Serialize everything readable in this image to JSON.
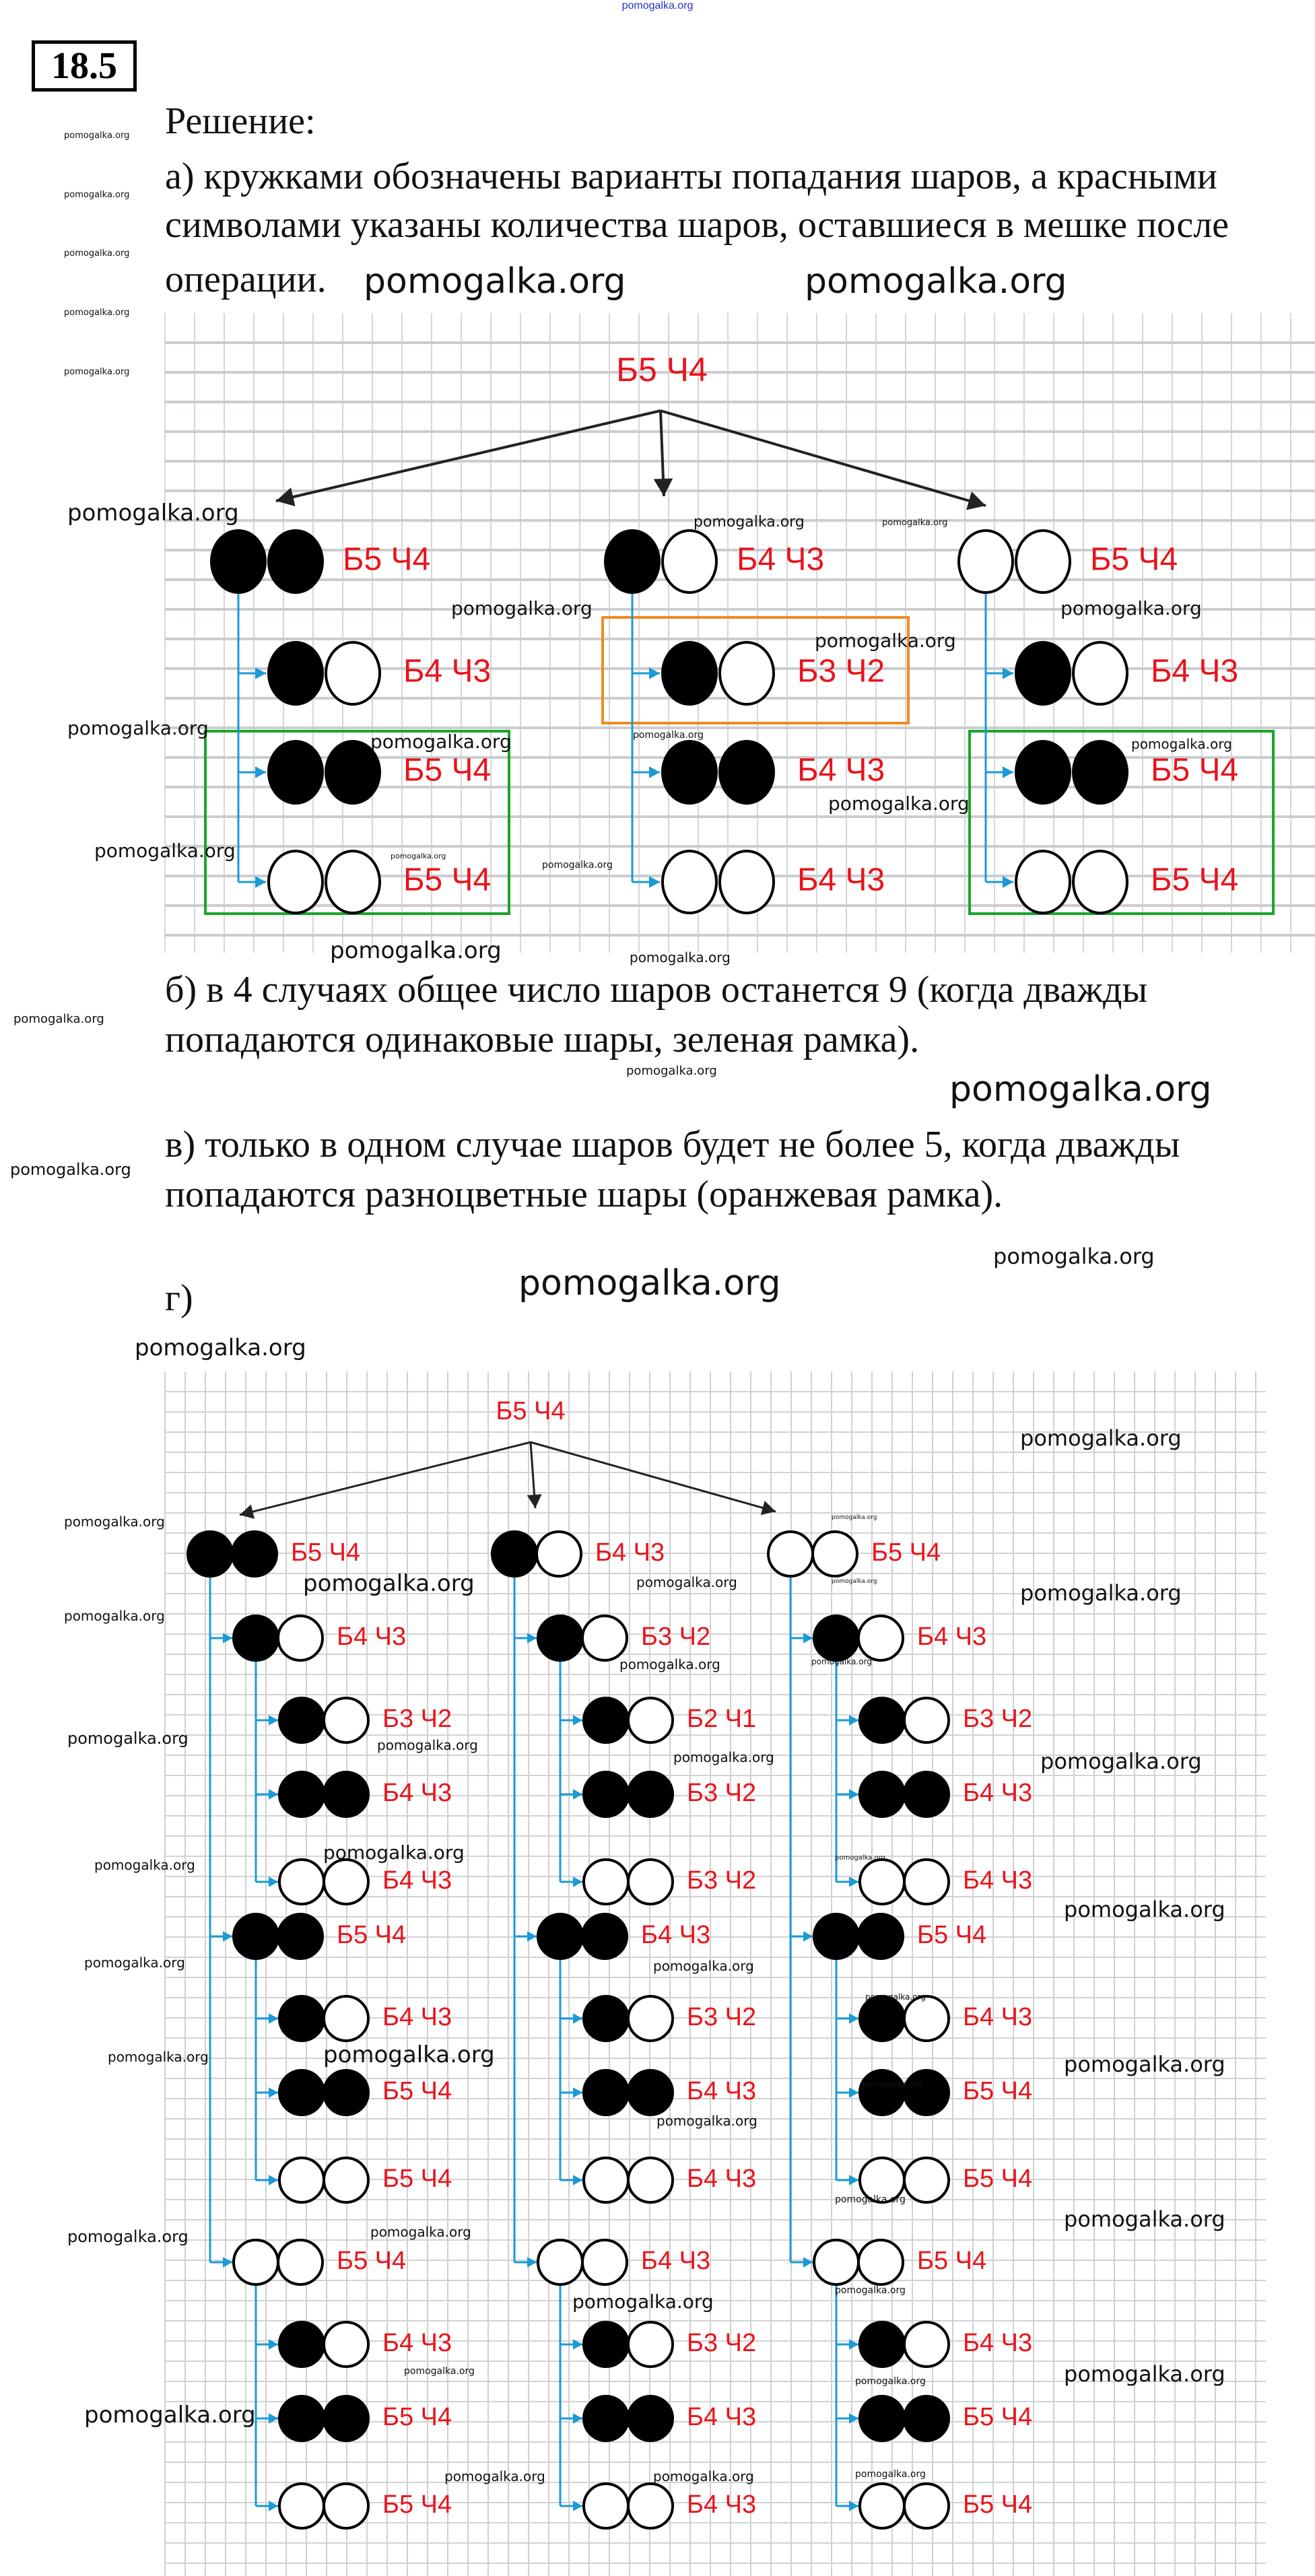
{
  "site_watermark": "pomogalka.org",
  "problem_number": "18.5",
  "solution_heading": "Решение:",
  "part_a": {
    "lines": [
      "а) кружками обозначены варианты попадания шаров, а красными",
      "символами указаны количества шаров, оставшиеся в мешке после",
      "операции."
    ]
  },
  "part_b": {
    "lines": [
      "б) в 4 случаях общее число шаров останется 9 (когда дважды",
      "попадаются одинаковые шары, зеленая рамка)."
    ]
  },
  "part_c": {
    "lines": [
      "в) только в одном случае шаров будет не более 5, когда дважды",
      "попадаются разноцветные шары (оранжевая рамка)."
    ]
  },
  "part_d": {
    "label": "г)"
  },
  "colors": {
    "label": "#e8141c",
    "connector": "#1a9ad6",
    "green_frame": "#1aa52a",
    "orange_frame": "#f08a24"
  },
  "tree_a": {
    "root": "Б5 Ч4",
    "nodes": [
      {
        "balls": [
          "b",
          "b"
        ],
        "label": "Б5 Ч4",
        "children": [
          {
            "balls": [
              "b",
              "w"
            ],
            "label": "Б4 Ч3"
          },
          {
            "balls": [
              "b",
              "b"
            ],
            "label": "Б5 Ч4"
          },
          {
            "balls": [
              "w",
              "w"
            ],
            "label": "Б5 Ч4"
          }
        ]
      },
      {
        "balls": [
          "b",
          "w"
        ],
        "label": "Б4 Ч3",
        "children": [
          {
            "balls": [
              "b",
              "w"
            ],
            "label": "Б3 Ч2"
          },
          {
            "balls": [
              "b",
              "b"
            ],
            "label": "Б4 Ч3"
          },
          {
            "balls": [
              "w",
              "w"
            ],
            "label": "Б4 Ч3"
          }
        ]
      },
      {
        "balls": [
          "w",
          "w"
        ],
        "label": "Б5 Ч4",
        "children": [
          {
            "balls": [
              "b",
              "w"
            ],
            "label": "Б4 Ч3"
          },
          {
            "balls": [
              "b",
              "b"
            ],
            "label": "Б5 Ч4"
          },
          {
            "balls": [
              "w",
              "w"
            ],
            "label": "Б5 Ч4"
          }
        ]
      }
    ]
  },
  "tree_g": {
    "root": "Б5 Ч4",
    "nodes": [
      {
        "balls": [
          "b",
          "b"
        ],
        "label": "Б5 Ч4",
        "children": [
          {
            "balls": [
              "b",
              "w"
            ],
            "label": "Б4 Ч3",
            "children": [
              {
                "balls": [
                  "b",
                  "w"
                ],
                "label": "Б3 Ч2"
              },
              {
                "balls": [
                  "b",
                  "b"
                ],
                "label": "Б4 Ч3"
              },
              {
                "balls": [
                  "w",
                  "w"
                ],
                "label": "Б4 Ч3"
              }
            ]
          },
          {
            "balls": [
              "b",
              "b"
            ],
            "label": "Б5 Ч4",
            "children": [
              {
                "balls": [
                  "b",
                  "w"
                ],
                "label": "Б4 Ч3"
              },
              {
                "balls": [
                  "b",
                  "b"
                ],
                "label": "Б5 Ч4"
              },
              {
                "balls": [
                  "w",
                  "w"
                ],
                "label": "Б5 Ч4"
              }
            ]
          },
          {
            "balls": [
              "w",
              "w"
            ],
            "label": "Б5 Ч4",
            "children": [
              {
                "balls": [
                  "b",
                  "w"
                ],
                "label": "Б4 Ч3"
              },
              {
                "balls": [
                  "b",
                  "b"
                ],
                "label": "Б5 Ч4"
              },
              {
                "balls": [
                  "w",
                  "w"
                ],
                "label": "Б5 Ч4"
              }
            ]
          }
        ]
      },
      {
        "balls": [
          "b",
          "w"
        ],
        "label": "Б4 Ч3",
        "children": [
          {
            "balls": [
              "b",
              "w"
            ],
            "label": "Б3 Ч2",
            "children": [
              {
                "balls": [
                  "b",
                  "w"
                ],
                "label": "Б2 Ч1"
              },
              {
                "balls": [
                  "b",
                  "b"
                ],
                "label": "Б3 Ч2"
              },
              {
                "balls": [
                  "w",
                  "w"
                ],
                "label": "Б3 Ч2"
              }
            ]
          },
          {
            "balls": [
              "b",
              "b"
            ],
            "label": "Б4 Ч3",
            "children": [
              {
                "balls": [
                  "b",
                  "w"
                ],
                "label": "Б3 Ч2"
              },
              {
                "balls": [
                  "b",
                  "b"
                ],
                "label": "Б4 Ч3"
              },
              {
                "balls": [
                  "w",
                  "w"
                ],
                "label": "Б4 Ч3"
              }
            ]
          },
          {
            "balls": [
              "w",
              "w"
            ],
            "label": "Б4 Ч3",
            "children": [
              {
                "balls": [
                  "b",
                  "w"
                ],
                "label": "Б3 Ч2"
              },
              {
                "balls": [
                  "b",
                  "b"
                ],
                "label": "Б4 Ч3"
              },
              {
                "balls": [
                  "w",
                  "w"
                ],
                "label": "Б4 Ч3"
              }
            ]
          }
        ]
      },
      {
        "balls": [
          "w",
          "w"
        ],
        "label": "Б5 Ч4",
        "children": [
          {
            "balls": [
              "b",
              "w"
            ],
            "label": "Б4 Ч3",
            "children": [
              {
                "balls": [
                  "b",
                  "w"
                ],
                "label": "Б3 Ч2"
              },
              {
                "balls": [
                  "b",
                  "b"
                ],
                "label": "Б4 Ч3"
              },
              {
                "balls": [
                  "w",
                  "w"
                ],
                "label": "Б4 Ч3"
              }
            ]
          },
          {
            "balls": [
              "b",
              "b"
            ],
            "label": "Б5 Ч4",
            "children": [
              {
                "balls": [
                  "b",
                  "w"
                ],
                "label": "Б4 Ч3"
              },
              {
                "balls": [
                  "b",
                  "b"
                ],
                "label": "Б5 Ч4"
              },
              {
                "balls": [
                  "w",
                  "w"
                ],
                "label": "Б5 Ч4"
              }
            ]
          },
          {
            "balls": [
              "w",
              "w"
            ],
            "label": "Б5 Ч4",
            "children": [
              {
                "balls": [
                  "b",
                  "w"
                ],
                "label": "Б4 Ч3"
              },
              {
                "balls": [
                  "b",
                  "b"
                ],
                "label": "Б5 Ч4"
              },
              {
                "balls": [
                  "w",
                  "w"
                ],
                "label": "Б5 Ч4"
              }
            ]
          }
        ]
      }
    ]
  }
}
